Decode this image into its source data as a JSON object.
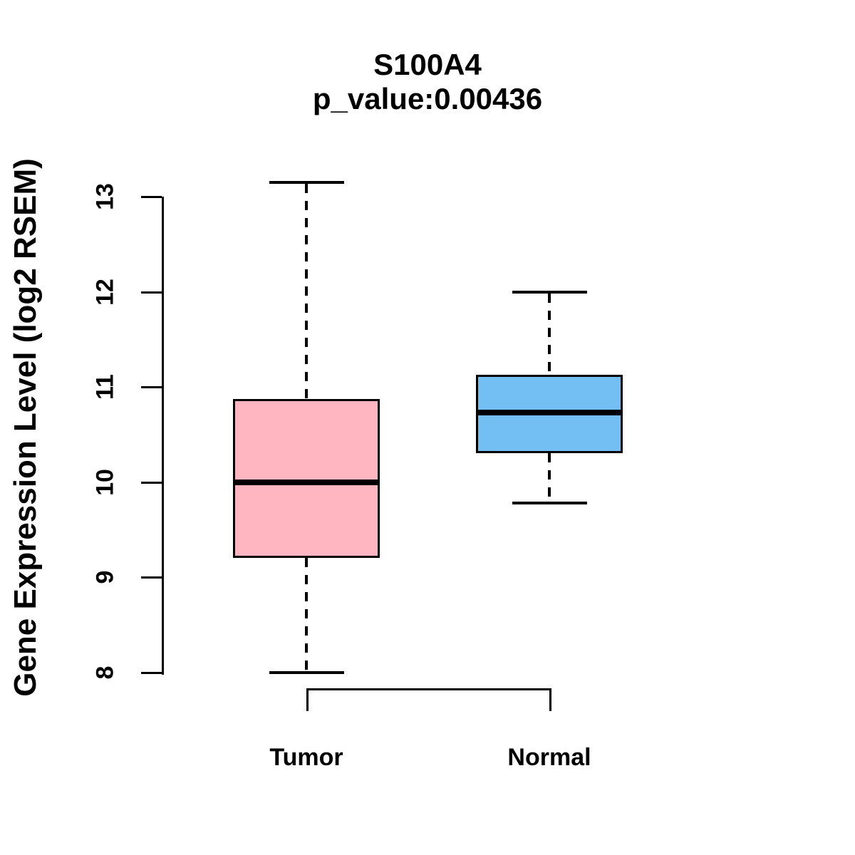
{
  "chart_data": {
    "type": "boxplot",
    "title": "S100A4",
    "subtitle": "p_value:0.00436",
    "ylabel": "Gene Expression Level (log2 RSEM)",
    "ylim": [
      8,
      13.2
    ],
    "yticks": [
      8,
      9,
      10,
      11,
      12,
      13
    ],
    "grid": false,
    "legend": "none",
    "groups": [
      {
        "label": "Tumor",
        "fill": "#FFB6C1",
        "whisker_low": 8.0,
        "q1": 9.2,
        "median": 10.0,
        "q3": 10.87,
        "whisker_high": 13.15,
        "outliers": []
      },
      {
        "label": "Normal",
        "fill": "#73BEF3",
        "whisker_low": 9.78,
        "q1": 10.3,
        "median": 10.73,
        "q3": 11.13,
        "whisker_high": 12.0,
        "outliers": []
      }
    ],
    "comparison_bracket": {
      "between": [
        "Tumor",
        "Normal"
      ]
    }
  },
  "colors": {
    "stroke": "#000000",
    "background": "#FFFFFF",
    "tumor_fill": "#FFB6C1",
    "normal_fill": "#73BEF3"
  }
}
